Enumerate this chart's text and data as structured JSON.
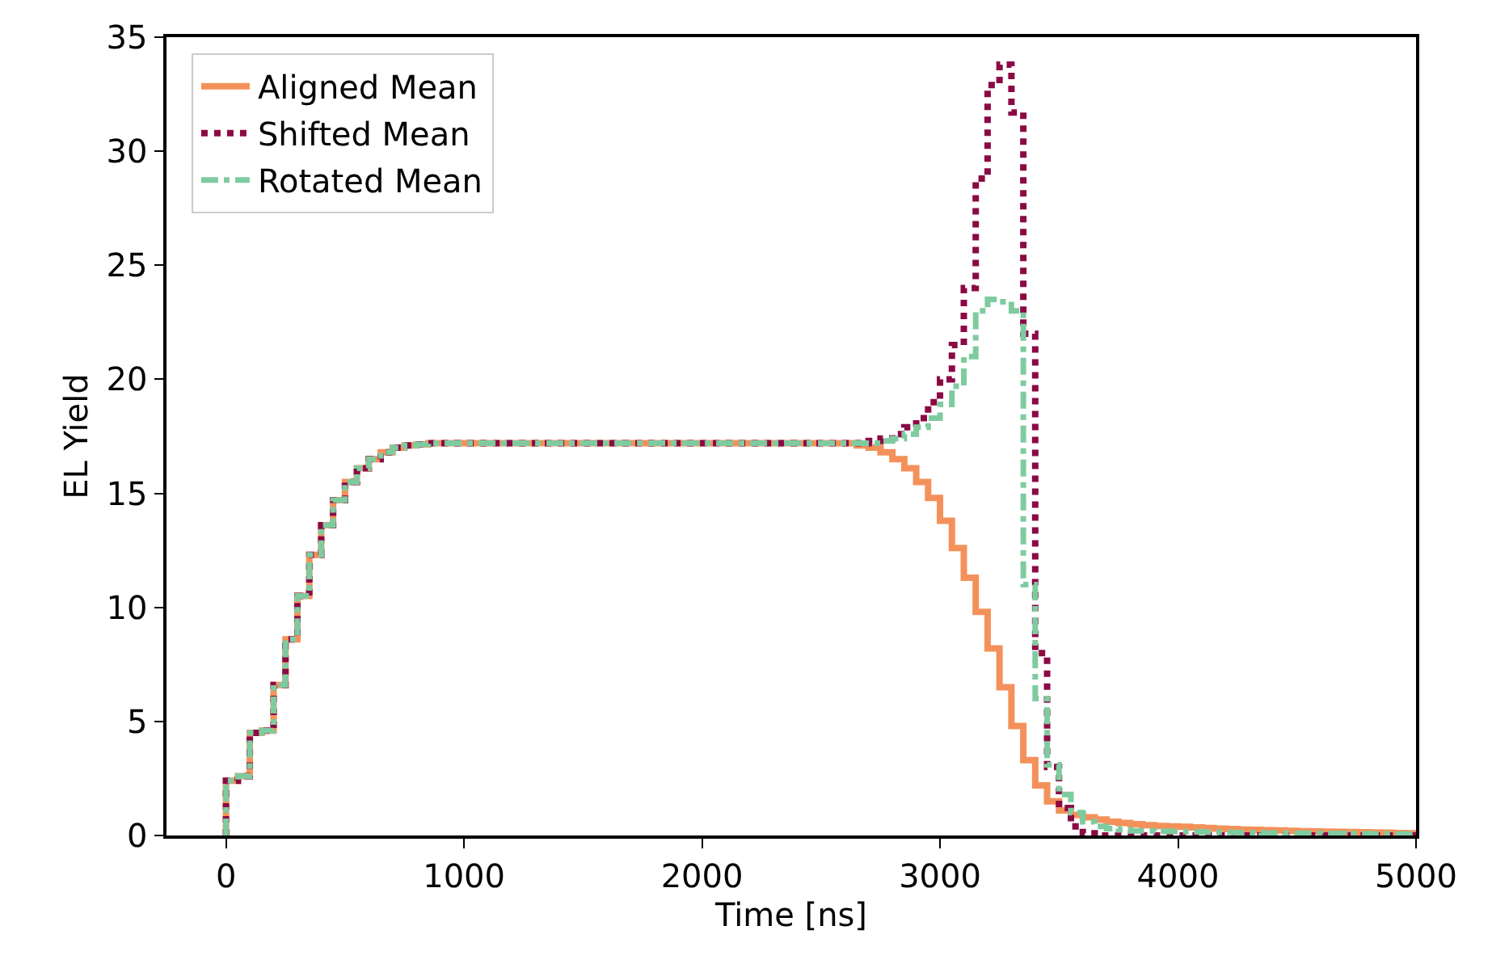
{
  "chart_data": {
    "type": "histogram",
    "xlabel": "Time [ns]",
    "ylabel": "EL Yield",
    "xlim": [
      -250,
      5000
    ],
    "xticks": [
      0,
      1000,
      2000,
      3000,
      4000,
      5000
    ],
    "ylim": [
      0,
      35
    ],
    "yticks": [
      0,
      5,
      10,
      15,
      20,
      25,
      30,
      35
    ],
    "legend": "top left",
    "bins": [
      0,
      50,
      100,
      150,
      200,
      250,
      300,
      350,
      400,
      450,
      500,
      550,
      600,
      650,
      700,
      750,
      800,
      850,
      900,
      950,
      1000,
      1050,
      1100,
      1150,
      1200,
      1250,
      1300,
      1350,
      1400,
      1450,
      1500,
      1550,
      1600,
      1650,
      1700,
      1750,
      1800,
      1850,
      1900,
      1950,
      2000,
      2050,
      2100,
      2150,
      2200,
      2250,
      2300,
      2350,
      2400,
      2450,
      2500,
      2550,
      2600,
      2650,
      2700,
      2750,
      2800,
      2850,
      2900,
      2950,
      3000,
      3050,
      3100,
      3150,
      3200,
      3250,
      3300,
      3350,
      3400,
      3450,
      3500,
      3550,
      3600,
      3650,
      3700,
      3750,
      3800,
      3850,
      3900,
      3950,
      4000,
      4050,
      4100,
      4150,
      4200,
      4250,
      4300,
      4350,
      4400,
      4450,
      4500,
      4550,
      4600,
      4650,
      4700,
      4750,
      4800,
      4850,
      4900,
      4950,
      5000
    ],
    "series": [
      {
        "name": "Aligned Mean",
        "color": "#f4915a",
        "line_style": "solid",
        "values": [
          2.4,
          2.6,
          4.5,
          4.6,
          6.6,
          8.6,
          10.5,
          12.3,
          13.6,
          14.7,
          15.5,
          16.1,
          16.5,
          16.8,
          17.0,
          17.1,
          17.15,
          17.2,
          17.2,
          17.2,
          17.2,
          17.2,
          17.2,
          17.2,
          17.2,
          17.2,
          17.2,
          17.2,
          17.2,
          17.2,
          17.2,
          17.2,
          17.2,
          17.2,
          17.2,
          17.2,
          17.2,
          17.2,
          17.2,
          17.2,
          17.2,
          17.2,
          17.2,
          17.2,
          17.2,
          17.2,
          17.2,
          17.2,
          17.2,
          17.2,
          17.2,
          17.2,
          17.2,
          17.1,
          17.0,
          16.8,
          16.5,
          16.1,
          15.5,
          14.8,
          13.8,
          12.6,
          11.3,
          9.8,
          8.2,
          6.5,
          4.8,
          3.3,
          2.2,
          1.5,
          1.1,
          0.9,
          0.8,
          0.7,
          0.6,
          0.55,
          0.5,
          0.45,
          0.42,
          0.4,
          0.38,
          0.35,
          0.33,
          0.3,
          0.28,
          0.26,
          0.25,
          0.23,
          0.22,
          0.2,
          0.19,
          0.18,
          0.17,
          0.16,
          0.15,
          0.14,
          0.13,
          0.12,
          0.11,
          0.1
        ]
      },
      {
        "name": "Shifted Mean",
        "color": "#8b0a45",
        "line_style": "dotted",
        "values": [
          2.4,
          2.6,
          4.5,
          4.6,
          6.6,
          8.6,
          10.5,
          12.3,
          13.6,
          14.7,
          15.5,
          16.1,
          16.5,
          16.8,
          17.0,
          17.1,
          17.15,
          17.2,
          17.2,
          17.2,
          17.2,
          17.2,
          17.2,
          17.2,
          17.2,
          17.2,
          17.2,
          17.2,
          17.2,
          17.2,
          17.2,
          17.2,
          17.2,
          17.2,
          17.2,
          17.2,
          17.2,
          17.2,
          17.2,
          17.2,
          17.2,
          17.2,
          17.2,
          17.2,
          17.2,
          17.2,
          17.2,
          17.2,
          17.2,
          17.2,
          17.2,
          17.2,
          17.2,
          17.2,
          17.3,
          17.4,
          17.6,
          17.9,
          18.3,
          19.0,
          20.0,
          21.5,
          24.0,
          28.8,
          32.9,
          33.8,
          31.7,
          22.0,
          8.0,
          3.0,
          1.2,
          0.4,
          0.1,
          0,
          0,
          0,
          0,
          0,
          0,
          0,
          0,
          0,
          0,
          0,
          0,
          0,
          0,
          0,
          0,
          0,
          0,
          0,
          0,
          0,
          0,
          0,
          0,
          0,
          0,
          0
        ]
      },
      {
        "name": "Rotated Mean",
        "color": "#7fcba0",
        "line_style": "dashdot",
        "values": [
          2.4,
          2.6,
          4.5,
          4.6,
          6.6,
          8.6,
          10.5,
          12.3,
          13.6,
          14.7,
          15.5,
          16.1,
          16.5,
          16.8,
          17.0,
          17.1,
          17.15,
          17.2,
          17.2,
          17.2,
          17.2,
          17.2,
          17.2,
          17.2,
          17.2,
          17.2,
          17.2,
          17.2,
          17.2,
          17.2,
          17.2,
          17.2,
          17.2,
          17.2,
          17.2,
          17.2,
          17.2,
          17.2,
          17.2,
          17.2,
          17.2,
          17.2,
          17.2,
          17.2,
          17.2,
          17.2,
          17.2,
          17.2,
          17.2,
          17.2,
          17.2,
          17.2,
          17.2,
          17.2,
          17.2,
          17.3,
          17.4,
          17.6,
          17.9,
          18.3,
          18.9,
          19.7,
          21.0,
          23.0,
          23.5,
          23.4,
          23.0,
          11.0,
          6.0,
          3.1,
          1.8,
          1.0,
          0.6,
          0.4,
          0.3,
          0.25,
          0.2,
          0.2,
          0.19,
          0.18,
          0.17,
          0.16,
          0.15,
          0.14,
          0.13,
          0.12,
          0.12,
          0.11,
          0.11,
          0.1,
          0.1,
          0.1,
          0.09,
          0.09,
          0.08,
          0.08,
          0.07,
          0.07,
          0.06,
          0.06
        ]
      }
    ]
  }
}
